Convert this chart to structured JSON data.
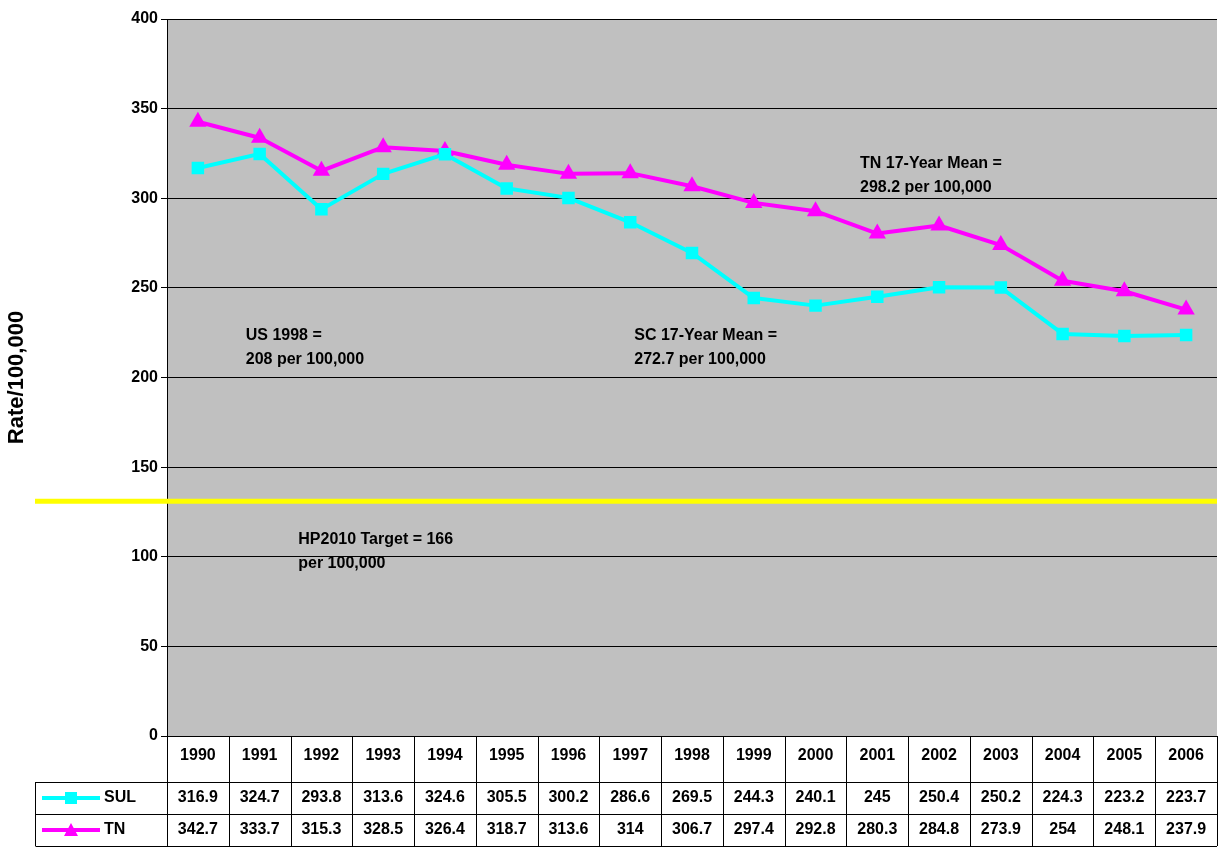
{
  "chart_data": {
    "type": "line",
    "ylabel": "Rate/100,000",
    "categories": [
      "1990",
      "1991",
      "1992",
      "1993",
      "1994",
      "1995",
      "1996",
      "1997",
      "1998",
      "1999",
      "2000",
      "2001",
      "2002",
      "2003",
      "2004",
      "2005",
      "2006"
    ],
    "series": [
      {
        "name": "SUL",
        "color": "#00ffff",
        "marker": "square",
        "values": [
          316.9,
          324.7,
          293.8,
          313.6,
          324.6,
          305.5,
          300.2,
          286.6,
          269.5,
          244.3,
          240.1,
          245,
          250.4,
          250.2,
          224.3,
          223.2,
          223.7
        ]
      },
      {
        "name": "TN",
        "color": "#ff00ff",
        "marker": "triangle",
        "values": [
          342.7,
          333.7,
          315.3,
          328.5,
          326.4,
          318.7,
          313.6,
          314,
          306.7,
          297.4,
          292.8,
          280.3,
          284.8,
          273.9,
          254,
          248.1,
          237.9
        ]
      }
    ],
    "ylim": [
      0,
      400
    ],
    "yticks": [
      0,
      50,
      100,
      150,
      200,
      250,
      300,
      350,
      400
    ],
    "grid": "y",
    "legend": "bottom",
    "data_labels": true,
    "ref_lines": [
      {
        "axis": "y",
        "value": 131,
        "color": "#ffff00"
      }
    ],
    "annotations": [
      "TN 17-Year Mean =\n298.2 per 100,000",
      "US 1998 =\n208 per 100,000",
      "SC 17-Year Mean =\n272.7 per 100,000",
      "HP2010 Target = 166\nper 100,000"
    ]
  }
}
